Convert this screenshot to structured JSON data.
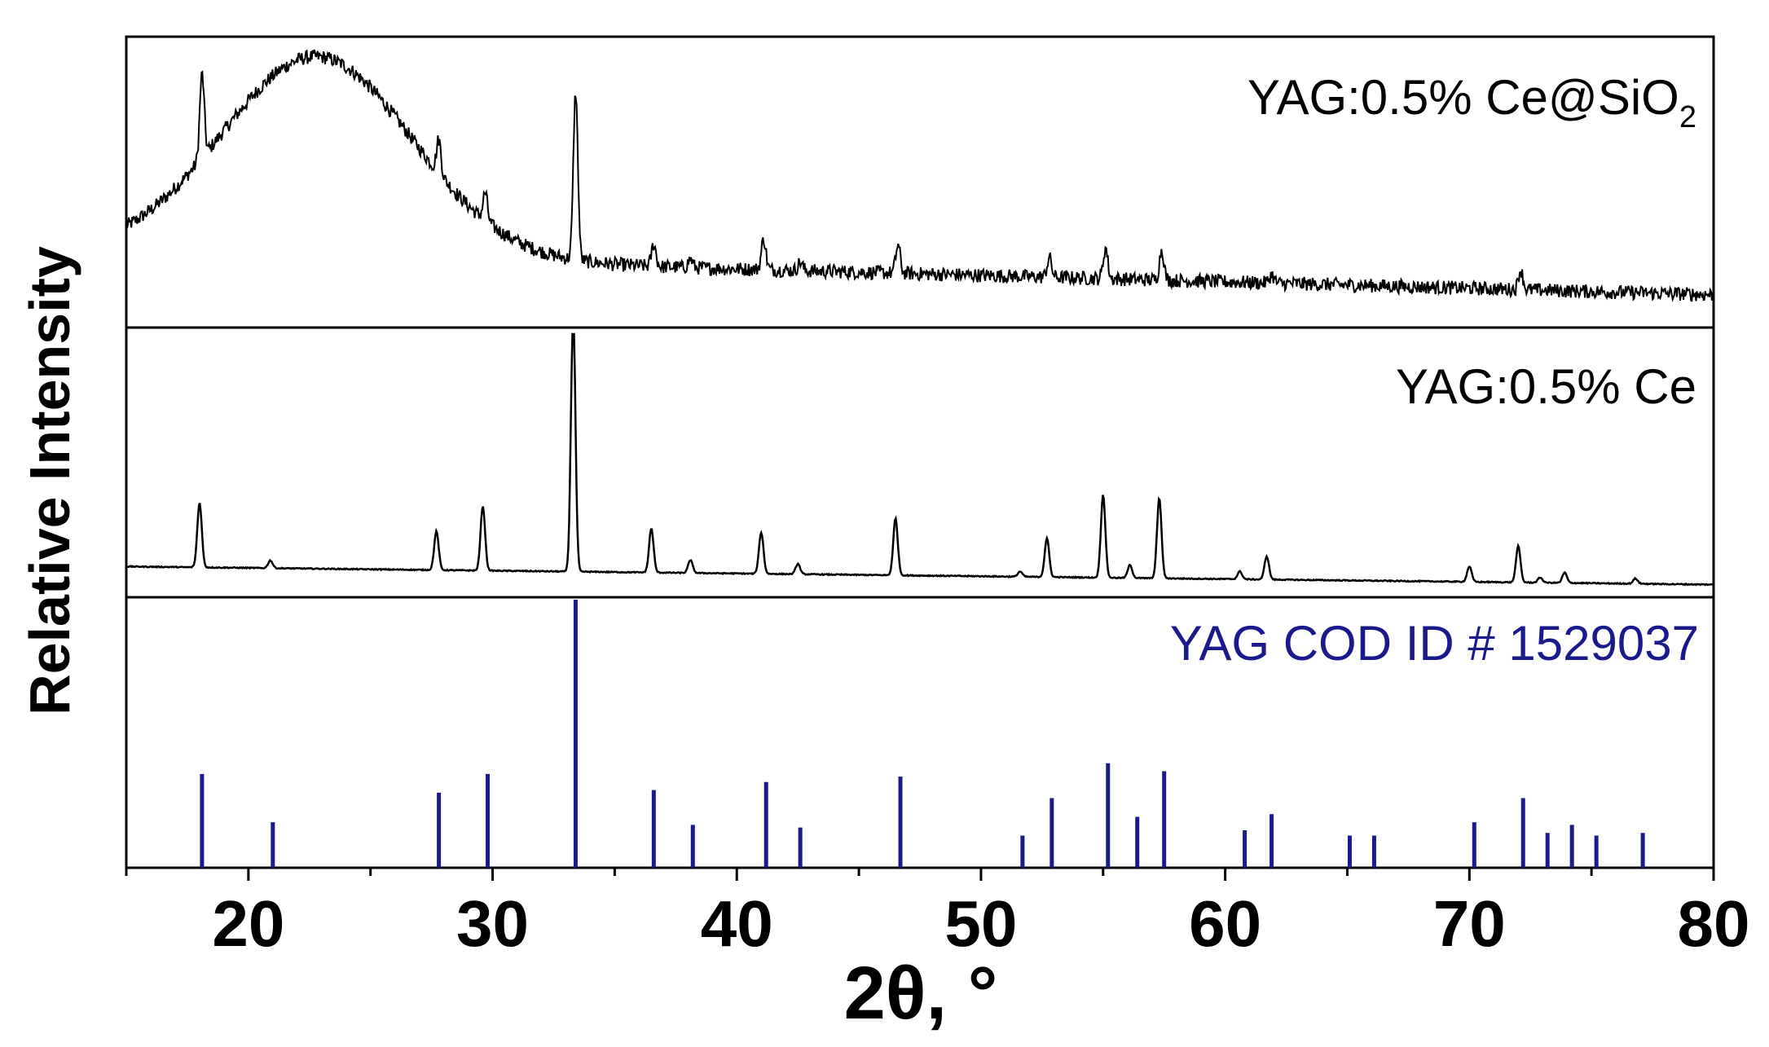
{
  "chart_data": {
    "type": "line",
    "title": "",
    "xlabel": "2θ, °",
    "ylabel": "Relative Intensity",
    "xlim": [
      15,
      80
    ],
    "x_ticks": [
      20,
      30,
      40,
      50,
      60,
      70,
      80
    ],
    "x_tick_labels": [
      "20",
      "30",
      "40",
      "50",
      "60",
      "70",
      "80"
    ],
    "grid": false,
    "colors": {
      "pattern": "#000000",
      "reference": "#1a1a8c"
    },
    "panels": [
      {
        "name": "YAG:0.5% Ce@SiO2",
        "label_main": "YAG:0.5% Ce@SiO",
        "label_sub": "2",
        "kind": "xrd_pattern",
        "background": {
          "amorphous_hump_center": 22.8,
          "amorphous_hump_width": 5.5,
          "amorphous_hump_height": 0.72,
          "baseline_start": 0.25,
          "baseline_end": 0.1
        },
        "noise": 0.025,
        "peaks": [
          {
            "x": 18.1,
            "h": 0.3
          },
          {
            "x": 27.8,
            "h": 0.12
          },
          {
            "x": 29.7,
            "h": 0.1
          },
          {
            "x": 33.4,
            "h": 0.6
          },
          {
            "x": 36.6,
            "h": 0.08
          },
          {
            "x": 38.1,
            "h": 0.03
          },
          {
            "x": 41.1,
            "h": 0.11
          },
          {
            "x": 42.6,
            "h": 0.03
          },
          {
            "x": 46.6,
            "h": 0.1
          },
          {
            "x": 52.8,
            "h": 0.07
          },
          {
            "x": 55.1,
            "h": 0.11
          },
          {
            "x": 57.4,
            "h": 0.11
          },
          {
            "x": 61.9,
            "h": 0.03
          },
          {
            "x": 72.1,
            "h": 0.07
          }
        ]
      },
      {
        "name": "YAG:0.5% Ce",
        "label_main": "YAG:0.5% Ce",
        "label_sub": "",
        "kind": "xrd_pattern",
        "background": {
          "amorphous_hump_center": 22.8,
          "amorphous_hump_width": 5.5,
          "amorphous_hump_height": 0.0,
          "baseline_start": 0.1,
          "baseline_end": 0.03
        },
        "noise": 0.002,
        "peaks": [
          {
            "x": 18.0,
            "h": 0.25
          },
          {
            "x": 20.9,
            "h": 0.03
          },
          {
            "x": 27.7,
            "h": 0.15
          },
          {
            "x": 29.6,
            "h": 0.25
          },
          {
            "x": 33.3,
            "h": 1.0
          },
          {
            "x": 36.5,
            "h": 0.17
          },
          {
            "x": 38.1,
            "h": 0.05
          },
          {
            "x": 41.0,
            "h": 0.16
          },
          {
            "x": 42.5,
            "h": 0.04
          },
          {
            "x": 46.5,
            "h": 0.22
          },
          {
            "x": 51.6,
            "h": 0.02
          },
          {
            "x": 52.7,
            "h": 0.15
          },
          {
            "x": 55.0,
            "h": 0.32
          },
          {
            "x": 56.1,
            "h": 0.05
          },
          {
            "x": 57.3,
            "h": 0.31
          },
          {
            "x": 60.6,
            "h": 0.03
          },
          {
            "x": 61.7,
            "h": 0.09
          },
          {
            "x": 70.0,
            "h": 0.06
          },
          {
            "x": 72.0,
            "h": 0.14
          },
          {
            "x": 72.9,
            "h": 0.02
          },
          {
            "x": 73.9,
            "h": 0.04
          },
          {
            "x": 76.8,
            "h": 0.02
          }
        ]
      },
      {
        "name": "YAG COD ID # 1529037",
        "label_main": "YAG COD ID # 1529037",
        "label_sub": "",
        "kind": "stick_reference",
        "sticks": [
          {
            "x": 18.1,
            "h": 0.35
          },
          {
            "x": 21.0,
            "h": 0.17
          },
          {
            "x": 27.8,
            "h": 0.28
          },
          {
            "x": 29.8,
            "h": 0.35
          },
          {
            "x": 33.4,
            "h": 1.0
          },
          {
            "x": 36.6,
            "h": 0.29
          },
          {
            "x": 38.2,
            "h": 0.16
          },
          {
            "x": 41.2,
            "h": 0.32
          },
          {
            "x": 42.6,
            "h": 0.15
          },
          {
            "x": 46.7,
            "h": 0.34
          },
          {
            "x": 51.7,
            "h": 0.12
          },
          {
            "x": 52.9,
            "h": 0.26
          },
          {
            "x": 55.2,
            "h": 0.39
          },
          {
            "x": 56.4,
            "h": 0.19
          },
          {
            "x": 57.5,
            "h": 0.36
          },
          {
            "x": 60.8,
            "h": 0.14
          },
          {
            "x": 61.9,
            "h": 0.2
          },
          {
            "x": 65.1,
            "h": 0.12
          },
          {
            "x": 66.1,
            "h": 0.12
          },
          {
            "x": 70.2,
            "h": 0.17
          },
          {
            "x": 72.2,
            "h": 0.26
          },
          {
            "x": 73.2,
            "h": 0.13
          },
          {
            "x": 74.2,
            "h": 0.16
          },
          {
            "x": 75.2,
            "h": 0.12
          },
          {
            "x": 77.1,
            "h": 0.13
          }
        ]
      }
    ]
  }
}
